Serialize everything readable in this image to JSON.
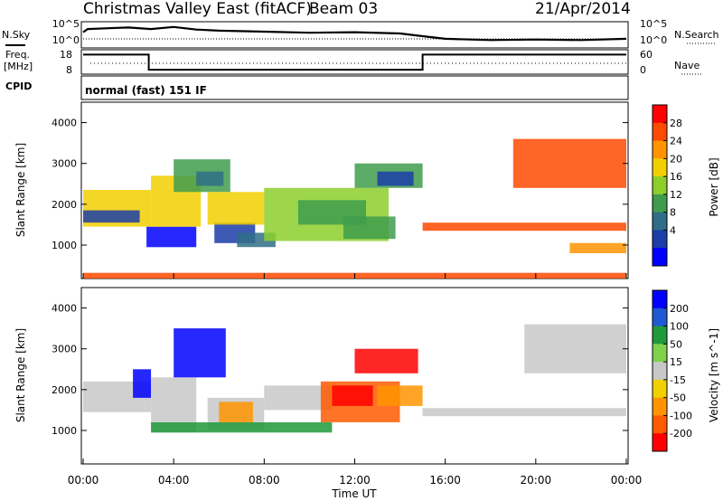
{
  "header": {
    "title": "Christmas Valley East (fitACF)",
    "beam": "Beam 03",
    "date": "21/Apr/2014"
  },
  "panels": {
    "nsky_label": "N.Sky",
    "nsky_ticks": [
      "10^5",
      "10^0"
    ],
    "nsearch_label": "N.Search",
    "nsearch_ticks": [
      "10^5",
      "10^0"
    ],
    "freq_label_line1": "Freq.",
    "freq_label_line2": "[MHz]",
    "freq_ticks": [
      "18",
      "8"
    ],
    "nave_label": "Nave",
    "nave_ticks": [
      "60",
      "0"
    ],
    "cpid_label": "CPID",
    "cpid_text": "normal (fast) 151 IF"
  },
  "chart_data": [
    {
      "type": "line",
      "name": "noise_panel",
      "x_range": [
        0,
        24
      ],
      "series": [
        {
          "name": "N.Sky",
          "points": [
            [
              0,
              0.6
            ],
            [
              0.2,
              0.72
            ],
            [
              1,
              0.75
            ],
            [
              2,
              0.78
            ],
            [
              3,
              0.72
            ],
            [
              4,
              0.8
            ],
            [
              5,
              0.7
            ],
            [
              6,
              0.66
            ],
            [
              8,
              0.62
            ],
            [
              10,
              0.58
            ],
            [
              12,
              0.6
            ],
            [
              14,
              0.55
            ],
            [
              15,
              0.45
            ],
            [
              16,
              0.35
            ],
            [
              18,
              0.3
            ],
            [
              20,
              0.32
            ],
            [
              22,
              0.3
            ],
            [
              24,
              0.35
            ]
          ]
        }
      ]
    },
    {
      "type": "line",
      "name": "frequency_panel",
      "x_range": [
        0,
        24
      ],
      "series": [
        {
          "name": "Freq.",
          "points": [
            [
              0,
              0.8
            ],
            [
              2.9,
              0.8
            ],
            [
              2.9,
              0.18
            ],
            [
              15,
              0.18
            ],
            [
              15,
              0.8
            ],
            [
              24,
              0.8
            ]
          ]
        }
      ]
    },
    {
      "type": "heatmap",
      "name": "power",
      "xlabel": "",
      "ylabel": "Slant Range [km]",
      "x_range": [
        0,
        24
      ],
      "y_range": [
        180,
        4500
      ],
      "y_ticks": [
        "1000",
        "2000",
        "3000",
        "4000"
      ],
      "colorbar_label": "Power [dB]",
      "colorbar_ticks": [
        "28",
        "24",
        "20",
        "16",
        "12",
        "8",
        "4"
      ],
      "colorbar_colors": [
        "#ff0000",
        "#ff4a00",
        "#ff9400",
        "#f2d000",
        "#8ccf2a",
        "#3f9c4c",
        "#2f6e86",
        "#1b3ea8",
        "#0000ff"
      ],
      "regions": [
        {
          "x0": 0.0,
          "x1": 3.0,
          "y0": 1450,
          "y1": 2350,
          "c": 3
        },
        {
          "x0": 0.0,
          "x1": 2.5,
          "y0": 1550,
          "y1": 1850,
          "c": 7
        },
        {
          "x0": 2.8,
          "x1": 5.0,
          "y0": 950,
          "y1": 1450,
          "c": 8
        },
        {
          "x0": 3.0,
          "x1": 5.2,
          "y0": 1450,
          "y1": 2700,
          "c": 3
        },
        {
          "x0": 4.0,
          "x1": 6.5,
          "y0": 2300,
          "y1": 3100,
          "c": 5
        },
        {
          "x0": 5.0,
          "x1": 6.2,
          "y0": 2450,
          "y1": 2800,
          "c": 6
        },
        {
          "x0": 5.8,
          "x1": 7.6,
          "y0": 1050,
          "y1": 1550,
          "c": 7
        },
        {
          "x0": 5.5,
          "x1": 8.0,
          "y0": 1500,
          "y1": 2300,
          "c": 3
        },
        {
          "x0": 6.8,
          "x1": 8.5,
          "y0": 950,
          "y1": 1300,
          "c": 6
        },
        {
          "x0": 8.0,
          "x1": 13.5,
          "y0": 1100,
          "y1": 2400,
          "c": 4
        },
        {
          "x0": 9.5,
          "x1": 12.5,
          "y0": 1500,
          "y1": 2100,
          "c": 5
        },
        {
          "x0": 11.5,
          "x1": 13.8,
          "y0": 1150,
          "y1": 1700,
          "c": 5
        },
        {
          "x0": 12.0,
          "x1": 15.0,
          "y0": 2400,
          "y1": 3000,
          "c": 5
        },
        {
          "x0": 13.0,
          "x1": 14.6,
          "y0": 2450,
          "y1": 2800,
          "c": 7
        },
        {
          "x0": 15.0,
          "x1": 24.0,
          "y0": 1350,
          "y1": 1550,
          "c": 1
        },
        {
          "x0": 19.0,
          "x1": 24.0,
          "y0": 2400,
          "y1": 3600,
          "c": 1
        },
        {
          "x0": 21.5,
          "x1": 24.0,
          "y0": 800,
          "y1": 1050,
          "c": 2
        },
        {
          "x0": 0.0,
          "x1": 24.0,
          "y0": 180,
          "y1": 320,
          "c": 1
        }
      ]
    },
    {
      "type": "heatmap",
      "name": "velocity",
      "xlabel": "Time UT",
      "ylabel": "Slant Range [km]",
      "x_range": [
        0,
        24
      ],
      "y_range": [
        180,
        4500
      ],
      "x_ticks": [
        "00:00",
        "04:00",
        "08:00",
        "12:00",
        "16:00",
        "20:00",
        "00:00"
      ],
      "y_ticks": [
        "1000",
        "2000",
        "3000",
        "4000"
      ],
      "colorbar_label": "Velocity [m s^-1]",
      "colorbar_ticks": [
        "200",
        "100",
        "50",
        "15",
        "-15",
        "-50",
        "-100",
        "-200"
      ],
      "colorbar_colors": [
        "#0000ff",
        "#1e5ad2",
        "#1f9a3a",
        "#7fd24a",
        "#c8c8c8",
        "#f2d000",
        "#ff9400",
        "#ff5a00",
        "#ff0000"
      ],
      "regions": [
        {
          "x0": 0.0,
          "x1": 3.0,
          "y0": 1450,
          "y1": 2200,
          "c": 4
        },
        {
          "x0": 2.2,
          "x1": 3.0,
          "y0": 1800,
          "y1": 2500,
          "c": 0
        },
        {
          "x0": 3.0,
          "x1": 5.0,
          "y0": 950,
          "y1": 2300,
          "c": 4
        },
        {
          "x0": 4.0,
          "x1": 6.3,
          "y0": 2300,
          "y1": 3500,
          "c": 0
        },
        {
          "x0": 5.5,
          "x1": 8.0,
          "y0": 1000,
          "y1": 1800,
          "c": 4
        },
        {
          "x0": 6.0,
          "x1": 7.5,
          "y0": 1200,
          "y1": 1700,
          "c": 6
        },
        {
          "x0": 8.0,
          "x1": 11.0,
          "y0": 1500,
          "y1": 2100,
          "c": 4
        },
        {
          "x0": 10.5,
          "x1": 14.0,
          "y0": 1200,
          "y1": 2200,
          "c": 7
        },
        {
          "x0": 11.0,
          "x1": 12.8,
          "y0": 1600,
          "y1": 2100,
          "c": 8
        },
        {
          "x0": 12.0,
          "x1": 14.8,
          "y0": 2400,
          "y1": 3000,
          "c": 8
        },
        {
          "x0": 13.0,
          "x1": 15.0,
          "y0": 1600,
          "y1": 2100,
          "c": 6
        },
        {
          "x0": 15.0,
          "x1": 24.0,
          "y0": 1350,
          "y1": 1550,
          "c": 4
        },
        {
          "x0": 19.5,
          "x1": 24.0,
          "y0": 2400,
          "y1": 3600,
          "c": 4
        },
        {
          "x0": 3.0,
          "x1": 11.0,
          "y0": 950,
          "y1": 1200,
          "c": 2
        }
      ]
    }
  ]
}
